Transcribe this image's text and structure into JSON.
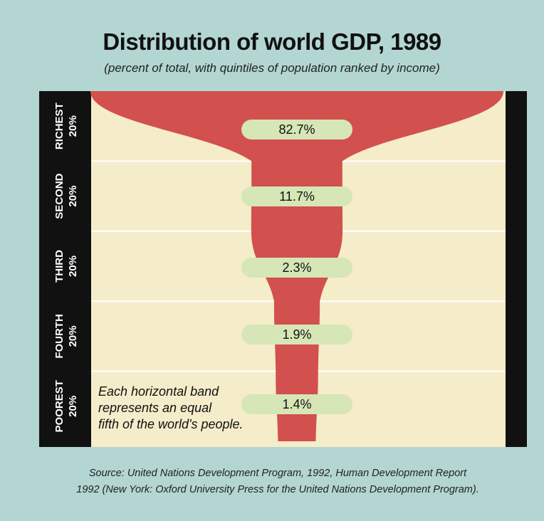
{
  "title": "Distribution of world GDP, 1989",
  "subtitle": "(percent of total, with quintiles of population ranked by income)",
  "source": [
    "Source: United Nations Development Program, 1992, Human Development Report",
    "1992 (New York: Oxford University Press for the United Nations Development Program)."
  ],
  "note": [
    "Each horizontal band",
    "represents an equal",
    "fifth of the world's people."
  ],
  "colors": {
    "background": "#b3d6d2",
    "panel": "#f5ecca",
    "frame": "#111111",
    "funnel": "#d2504e",
    "pill": "#d6e6b6"
  },
  "chart_data": {
    "type": "funnel",
    "title": "Distribution of world GDP, 1989",
    "subtitle": "(percent of total, with quintiles of population ranked by income)",
    "categories": [
      [
        "RICHEST",
        "20%"
      ],
      [
        "SECOND",
        "20%"
      ],
      [
        "THIRD",
        "20%"
      ],
      [
        "FOURTH",
        "20%"
      ],
      [
        "POOREST",
        "20%"
      ]
    ],
    "values": [
      82.7,
      11.7,
      2.3,
      1.9,
      1.4
    ],
    "value_labels": [
      "82.7%",
      "11.7%",
      "2.3%",
      "1.9%",
      "1.4%"
    ]
  }
}
